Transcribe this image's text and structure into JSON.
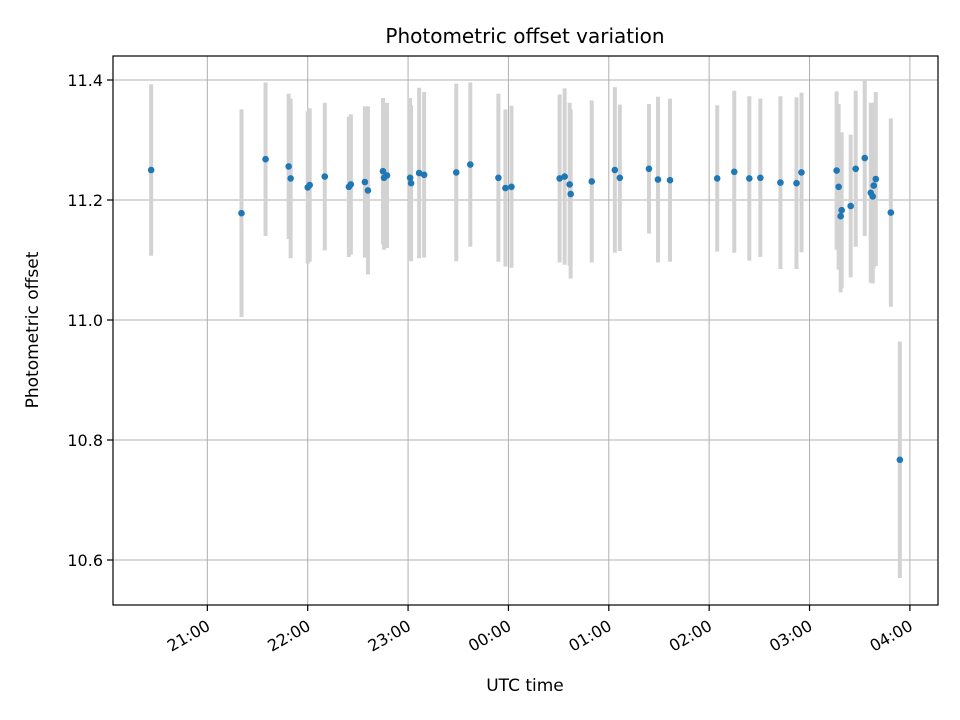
{
  "chart_data": {
    "type": "scatter",
    "title": "Photometric offset variation",
    "xlabel": "UTC time",
    "ylabel": "Photometric offset",
    "grid": true,
    "x_unit": "hours (UTC, relative to 00:00)",
    "xlim": [
      -3.94,
      4.28
    ],
    "ylim": [
      10.525,
      11.44
    ],
    "x_ticks": [
      -3,
      -2,
      -1,
      0,
      1,
      2,
      3,
      4
    ],
    "x_tick_labels": [
      "21:00",
      "22:00",
      "23:00",
      "00:00",
      "01:00",
      "02:00",
      "03:00",
      "04:00"
    ],
    "y_ticks": [
      10.6,
      10.8,
      11.0,
      11.2,
      11.4
    ],
    "y_tick_labels": [
      "10.6",
      "10.8",
      "11.0",
      "11.2",
      "11.4"
    ],
    "marker_color": "#1f77b4",
    "errorbar_color": "#d3d3d3",
    "points": [
      {
        "x": -3.56,
        "y": 11.25,
        "err": 0.143
      },
      {
        "x": -2.66,
        "y": 11.178,
        "err": 0.173
      },
      {
        "x": -2.42,
        "y": 11.268,
        "err": 0.128
      },
      {
        "x": -2.19,
        "y": 11.256,
        "err": 0.121
      },
      {
        "x": -2.17,
        "y": 11.236,
        "err": 0.133
      },
      {
        "x": -2.0,
        "y": 11.221,
        "err": 0.127
      },
      {
        "x": -1.98,
        "y": 11.225,
        "err": 0.128
      },
      {
        "x": -1.83,
        "y": 11.239,
        "err": 0.123
      },
      {
        "x": -1.59,
        "y": 11.222,
        "err": 0.117
      },
      {
        "x": -1.57,
        "y": 11.226,
        "err": 0.117
      },
      {
        "x": -1.43,
        "y": 11.23,
        "err": 0.126
      },
      {
        "x": -1.4,
        "y": 11.216,
        "err": 0.14
      },
      {
        "x": -1.25,
        "y": 11.248,
        "err": 0.122
      },
      {
        "x": -1.24,
        "y": 11.237,
        "err": 0.12
      },
      {
        "x": -1.21,
        "y": 11.241,
        "err": 0.121
      },
      {
        "x": -0.98,
        "y": 11.237,
        "err": 0.133
      },
      {
        "x": -0.97,
        "y": 11.228,
        "err": 0.13
      },
      {
        "x": -0.89,
        "y": 11.245,
        "err": 0.142
      },
      {
        "x": -0.84,
        "y": 11.242,
        "err": 0.138
      },
      {
        "x": -0.52,
        "y": 11.246,
        "err": 0.148
      },
      {
        "x": -0.38,
        "y": 11.259,
        "err": 0.137
      },
      {
        "x": -0.1,
        "y": 11.237,
        "err": 0.14
      },
      {
        "x": -0.03,
        "y": 11.22,
        "err": 0.131
      },
      {
        "x": 0.03,
        "y": 11.222,
        "err": 0.135
      },
      {
        "x": 0.51,
        "y": 11.236,
        "err": 0.14
      },
      {
        "x": 0.56,
        "y": 11.239,
        "err": 0.147
      },
      {
        "x": 0.61,
        "y": 11.226,
        "err": 0.136
      },
      {
        "x": 0.62,
        "y": 11.21,
        "err": 0.141
      },
      {
        "x": 0.83,
        "y": 11.231,
        "err": 0.135
      },
      {
        "x": 1.06,
        "y": 11.25,
        "err": 0.138
      },
      {
        "x": 1.11,
        "y": 11.237,
        "err": 0.122
      },
      {
        "x": 1.4,
        "y": 11.252,
        "err": 0.108
      },
      {
        "x": 1.49,
        "y": 11.234,
        "err": 0.138
      },
      {
        "x": 1.61,
        "y": 11.233,
        "err": 0.136
      },
      {
        "x": 2.08,
        "y": 11.236,
        "err": 0.122
      },
      {
        "x": 2.25,
        "y": 11.247,
        "err": 0.135
      },
      {
        "x": 2.4,
        "y": 11.236,
        "err": 0.137
      },
      {
        "x": 2.51,
        "y": 11.237,
        "err": 0.132
      },
      {
        "x": 2.71,
        "y": 11.229,
        "err": 0.144
      },
      {
        "x": 2.87,
        "y": 11.228,
        "err": 0.143
      },
      {
        "x": 2.92,
        "y": 11.246,
        "err": 0.133
      },
      {
        "x": 3.27,
        "y": 11.249,
        "err": 0.132
      },
      {
        "x": 3.29,
        "y": 11.222,
        "err": 0.138
      },
      {
        "x": 3.31,
        "y": 11.173,
        "err": 0.127
      },
      {
        "x": 3.32,
        "y": 11.183,
        "err": 0.13
      },
      {
        "x": 3.41,
        "y": 11.19,
        "err": 0.119
      },
      {
        "x": 3.46,
        "y": 11.252,
        "err": 0.13
      },
      {
        "x": 3.55,
        "y": 11.27,
        "err": 0.13
      },
      {
        "x": 3.61,
        "y": 11.212,
        "err": 0.15
      },
      {
        "x": 3.63,
        "y": 11.206,
        "err": 0.145
      },
      {
        "x": 3.64,
        "y": 11.224,
        "err": 0.138
      },
      {
        "x": 3.66,
        "y": 11.235,
        "err": 0.145
      },
      {
        "x": 3.81,
        "y": 11.179,
        "err": 0.157
      },
      {
        "x": 3.9,
        "y": 10.767,
        "err": 0.197
      }
    ]
  }
}
